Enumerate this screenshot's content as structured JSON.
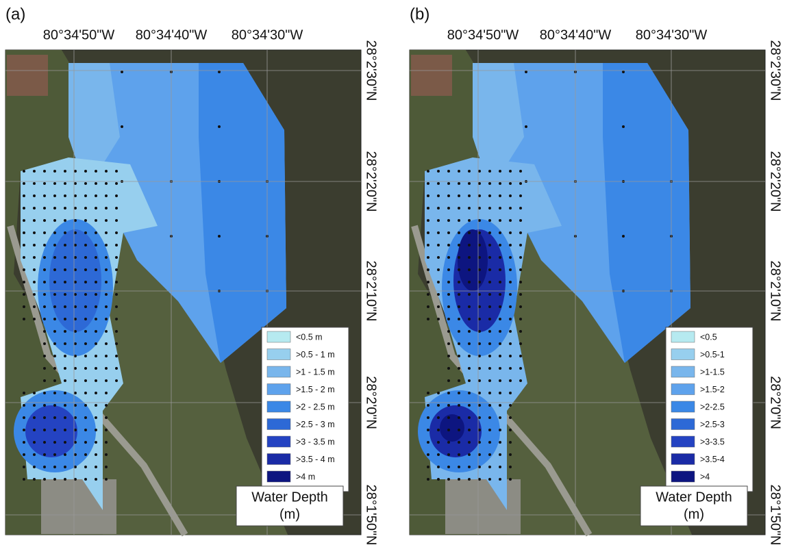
{
  "panels": [
    {
      "label": "(a)",
      "longitude_labels": [
        "80°34'50\"W",
        "80°34'40\"W",
        "80°34'30\"W"
      ],
      "latitude_labels": [
        "28°2'30\"N",
        "28°2'20\"N",
        "28°2'10\"N",
        "28°2'0\"N",
        "28°1'50\"N"
      ],
      "legend": {
        "items": [
          {
            "label": "<0.5 m",
            "color": "#b6eaf0"
          },
          {
            "label": ">0.5 - 1 m",
            "color": "#97cfee"
          },
          {
            "label": ">1 - 1.5 m",
            "color": "#79b6ec"
          },
          {
            "label": ">1.5 - 2 m",
            "color": "#5ea2ec"
          },
          {
            "label": ">2 - 2.5 m",
            "color": "#3b88e6"
          },
          {
            "label": ">2.5 - 3 m",
            "color": "#2d69d6"
          },
          {
            "label": ">3 - 3.5 m",
            "color": "#2443c2"
          },
          {
            "label": ">3.5 - 4 m",
            "color": "#1a2ba6"
          },
          {
            "label": ">4 m",
            "color": "#0d1580"
          }
        ],
        "title": [
          "Water Depth",
          "(m)"
        ]
      }
    },
    {
      "label": "(b)",
      "longitude_labels": [
        "80°34'50\"W",
        "80°34'40\"W",
        "80°34'30\"W"
      ],
      "latitude_labels": [
        "28°2'30\"N",
        "28°2'20\"N",
        "28°2'10\"N",
        "28°2'0\"N",
        "28°1'50\"N"
      ],
      "legend": {
        "items": [
          {
            "label": "<0.5",
            "color": "#b6eaf0"
          },
          {
            "label": ">0.5-1",
            "color": "#97cfee"
          },
          {
            "label": ">1-1.5",
            "color": "#79b6ec"
          },
          {
            "label": ">1.5-2",
            "color": "#5ea2ec"
          },
          {
            "label": ">2-2.5",
            "color": "#3b88e6"
          },
          {
            "label": ">2.5-3",
            "color": "#2d69d6"
          },
          {
            "label": ">3-3.5",
            "color": "#2443c2"
          },
          {
            "label": ">3.5-4",
            "color": "#1a2ba6"
          },
          {
            "label": ">4",
            "color": "#0d1580"
          }
        ],
        "title": [
          "Water Depth",
          "(m)"
        ]
      }
    }
  ]
}
